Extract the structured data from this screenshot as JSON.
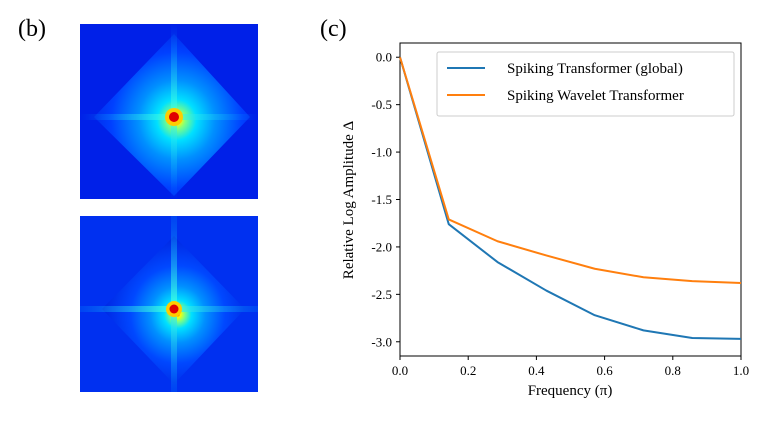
{
  "panels": {
    "b": {
      "label": "(b)"
    },
    "c": {
      "label": "(c)"
    }
  },
  "heatmaps": [
    {
      "name": "heatmap-top",
      "colormap": "jet"
    },
    {
      "name": "heatmap-bottom",
      "colormap": "jet"
    }
  ],
  "chart_data": {
    "type": "line",
    "title": "",
    "xlabel": "Frequency (π)",
    "ylabel": "Relative Log Amplitude Δ",
    "xlim": [
      0.0,
      1.0
    ],
    "ylim": [
      -3.15,
      0.15
    ],
    "xticks": [
      "0.0",
      "0.2",
      "0.4",
      "0.6",
      "0.8",
      "1.0"
    ],
    "yticks": [
      "0.0",
      "-0.5",
      "-1.0",
      "-1.5",
      "-2.0",
      "-2.5",
      "-3.0"
    ],
    "x": [
      0.0,
      0.143,
      0.286,
      0.429,
      0.571,
      0.714,
      0.857,
      1.0
    ],
    "series": [
      {
        "name": "Spiking Transformer (global)",
        "color": "#1f77b4",
        "values": [
          0.0,
          -1.76,
          -2.16,
          -2.46,
          -2.72,
          -2.88,
          -2.96,
          -2.97
        ]
      },
      {
        "name": "Spiking Wavelet Transformer",
        "color": "#ff7f0e",
        "values": [
          0.0,
          -1.71,
          -1.94,
          -2.09,
          -2.23,
          -2.32,
          -2.36,
          -2.38
        ]
      }
    ],
    "legend_position": "top-right",
    "grid": false
  }
}
